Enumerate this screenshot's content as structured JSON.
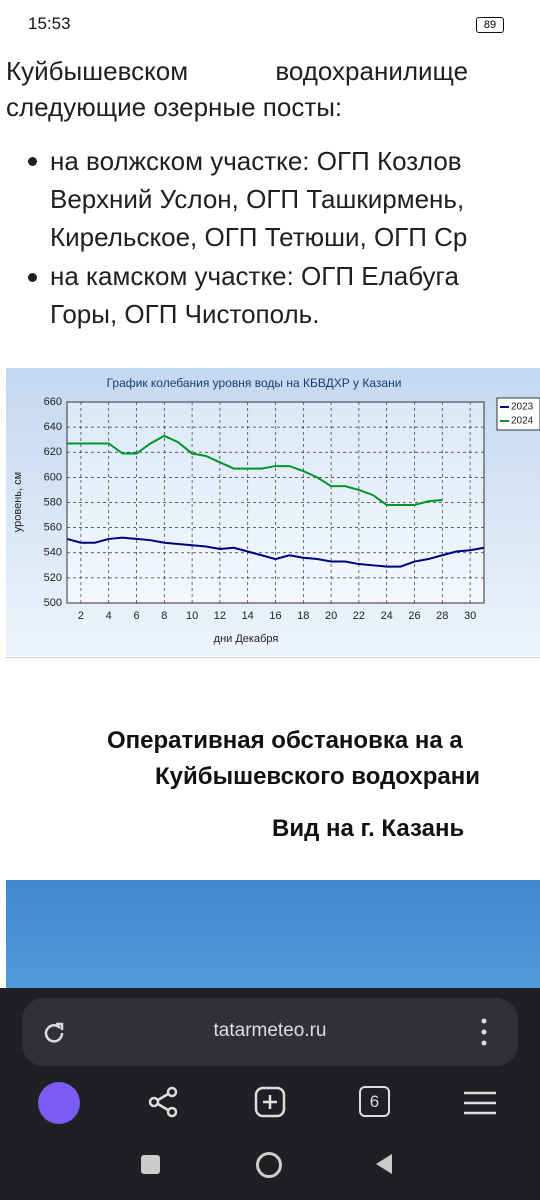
{
  "status": {
    "time": "15:53",
    "battery": "89"
  },
  "article": {
    "lines": [
      "Куйбышевском водохранилище",
      "следующие озерные посты:"
    ],
    "bullets": [
      [
        "на волжском участке: ОГП Козлов",
        "Верхний Услон, ОГП Ташкирмень,",
        "Кирельское, ОГП Тетюши, ОГП Ср"
      ],
      [
        "на камском участке: ОГП Елабуга",
        "Горы, ОГП Чистополь."
      ]
    ]
  },
  "chart_data": {
    "type": "line",
    "title": "График колебания уровня воды на КБВДХР у Казани",
    "xlabel": "дни Декабря",
    "ylabel": "уровень, см",
    "x": [
      1,
      2,
      3,
      4,
      5,
      6,
      7,
      8,
      9,
      10,
      11,
      12,
      13,
      14,
      15,
      16,
      17,
      18,
      19,
      20,
      21,
      22,
      23,
      24,
      25,
      26,
      27,
      28,
      29,
      30,
      31
    ],
    "series": [
      {
        "name": "2023",
        "color": "#000080",
        "values": [
          551,
          548,
          548,
          551,
          552,
          551,
          550,
          548,
          547,
          546,
          545,
          543,
          544,
          541,
          538,
          535,
          538,
          536,
          535,
          533,
          533,
          531,
          530,
          529,
          529,
          533,
          535,
          538,
          541,
          542,
          544
        ]
      },
      {
        "name": "2024",
        "color": "#00942c",
        "values": [
          627,
          627,
          627,
          627,
          619,
          619,
          627,
          633,
          628,
          619,
          617,
          612,
          607,
          607,
          607,
          609,
          609,
          605,
          600,
          593,
          593,
          590,
          586,
          578,
          578,
          578,
          581,
          582,
          null,
          null,
          null
        ]
      }
    ],
    "xlim": [
      1,
      31
    ],
    "xticks": [
      2,
      4,
      6,
      8,
      10,
      12,
      14,
      16,
      18,
      20,
      22,
      24,
      26,
      28,
      30
    ],
    "ylim": [
      500,
      660
    ],
    "yticks": [
      500,
      520,
      540,
      560,
      580,
      600,
      620,
      640,
      660
    ],
    "grid": true,
    "legend": "right"
  },
  "section": {
    "heading": [
      "Оперативная обстановка на а",
      "Куйбышевского водохрани"
    ],
    "caption": "Вид на г. Казань"
  },
  "browser": {
    "url": "tatarmeteo.ru",
    "tabs": "6"
  }
}
